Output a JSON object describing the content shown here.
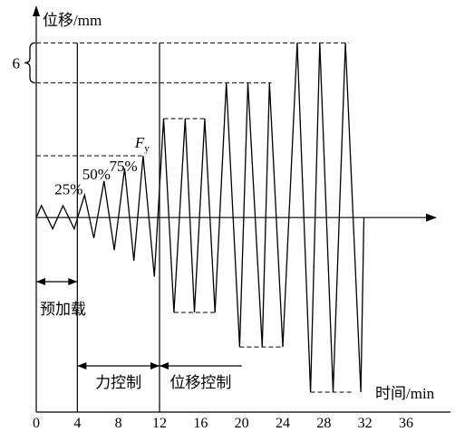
{
  "chart_data": {
    "type": "line",
    "xlabel": "时间/min",
    "ylabel": "位移/mm",
    "xlim": [
      0,
      39
    ],
    "ylim": [
      -29.3,
      31.4
    ],
    "x_ticks": [
      0,
      4,
      8,
      12,
      16,
      20,
      24,
      28,
      32,
      36
    ],
    "grid": false,
    "series": [
      {
        "x": [
          0,
          0.5,
          1.6,
          2.6,
          3.7,
          4.7,
          5.6,
          6.6,
          7.6,
          8.6,
          9.5,
          10.4,
          11.5,
          12.4,
          13.4,
          14.5,
          15.4,
          16.4,
          17.4,
          18.5,
          19.8,
          20.6,
          22.0,
          22.7,
          24.0,
          25.4,
          26.7,
          27.6,
          28.9,
          30.1,
          31.6,
          31.9
        ],
        "y": [
          0,
          1.8,
          -1.7,
          1.8,
          -1.7,
          3.4,
          -3.1,
          5.5,
          -4.9,
          7.4,
          -6.5,
          9.3,
          -8.9,
          14.9,
          -14.3,
          14.9,
          -14.3,
          14.9,
          -14.3,
          20.3,
          -19.5,
          20.3,
          -19.5,
          20.3,
          -19.5,
          26.3,
          -26.3,
          26.3,
          -26.3,
          26.3,
          -26.3,
          0
        ]
      }
    ],
    "dashed_lines": [
      {
        "y": 26.3,
        "x": [
          0,
          30.4
        ]
      },
      {
        "y": 20.3,
        "x": [
          0,
          22.9
        ]
      },
      {
        "y": 9.3,
        "x": [
          0,
          10.3
        ]
      },
      {
        "y": 14.9,
        "x": [
          12.4,
          16.6
        ]
      },
      {
        "y": -14.3,
        "x": [
          13.4,
          17.4
        ]
      },
      {
        "y": -19.5,
        "x": [
          19.8,
          24.0
        ]
      },
      {
        "y": -26.3,
        "x": [
          26.7,
          30.9
        ]
      }
    ],
    "phase_boundaries": [
      4,
      12
    ],
    "phases": [
      {
        "label": "预加载",
        "start": 0,
        "end": 4
      },
      {
        "label": "力控制",
        "start": 4,
        "end": 12
      },
      {
        "label": "位移控制",
        "start": 12,
        "end": 20
      }
    ],
    "level_labels": [
      {
        "text": "25%",
        "x": 4.7,
        "y": 3.4
      },
      {
        "text": "50%",
        "x": 6.6,
        "y": 5.5
      },
      {
        "text": "75%",
        "x": 8.6,
        "y": 7.4
      },
      {
        "text": "F",
        "sub": "y",
        "x": 10.4,
        "y": 9.3
      }
    ],
    "brace_annotation": {
      "text": "6",
      "from": 20.3,
      "to": 26.3
    }
  }
}
